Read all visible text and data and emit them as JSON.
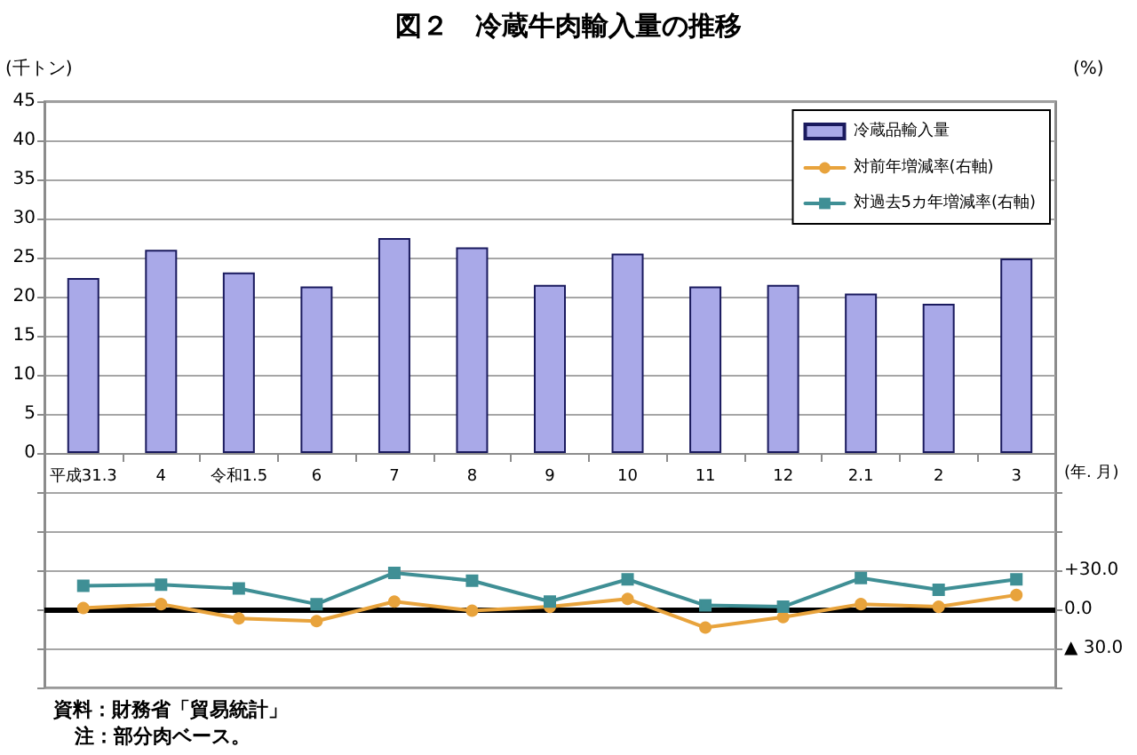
{
  "chart_data": {
    "type": "bar",
    "title": "図２　冷蔵牛肉輸入量の推移",
    "ylabel": "(千トン)",
    "y2label": "(%)",
    "xlabel": "(年. 月)",
    "categories": [
      "平成31.3",
      "4",
      "令和1.5",
      "6",
      "7",
      "8",
      "9",
      "10",
      "11",
      "12",
      "2.1",
      "2",
      "3"
    ],
    "series": [
      {
        "name": "冷蔵品輸入量",
        "color": "#a9a9e8",
        "values": [
          22.4,
          26.0,
          23.1,
          21.3,
          27.5,
          26.3,
          21.5,
          25.5,
          21.3,
          21.5,
          20.4,
          19.1,
          24.9
        ]
      },
      {
        "name": "対前年増減率(右軸)",
        "type": "line",
        "axis": "y2",
        "color": "#e8a33c",
        "marker": "circle",
        "values": [
          1,
          4,
          -7,
          -9,
          6,
          -1,
          2,
          8,
          -14,
          -6,
          4,
          2,
          11
        ]
      },
      {
        "name": "対過去5カ年増減率(右軸)",
        "type": "line",
        "axis": "y2",
        "color": "#3f8f95",
        "marker": "square",
        "values": [
          18,
          19,
          16,
          4,
          28,
          22,
          6,
          23,
          3,
          2,
          24,
          15,
          23
        ]
      }
    ],
    "ylim": [
      -30,
      45
    ],
    "yticks": [
      {
        "value": -30,
        "label": null
      },
      {
        "value": -25,
        "label": null
      },
      {
        "value": -20,
        "label": null
      },
      {
        "value": -15,
        "label": null
      },
      {
        "value": -10,
        "label": null
      },
      {
        "value": -5,
        "label": null
      },
      0,
      5,
      10,
      15,
      20,
      25,
      30,
      35,
      40,
      45
    ],
    "y2lim": [
      -60,
      390
    ],
    "y2ticks": [
      {
        "value": -60,
        "label": null
      },
      {
        "value": -30,
        "label": "▲ 30.0"
      },
      {
        "value": 0,
        "label": "0.0"
      },
      {
        "value": 30,
        "label": "+30.0"
      },
      {
        "value": 60,
        "label": null
      },
      {
        "value": 90,
        "label": null
      }
    ],
    "ref_lines": [
      {
        "axis": "y2",
        "value": 0,
        "color": "#000000"
      }
    ],
    "grid": "y",
    "legend": "top right",
    "annotations": [
      "資料：財務省「貿易統計」",
      "注：部分肉ベース。"
    ]
  }
}
